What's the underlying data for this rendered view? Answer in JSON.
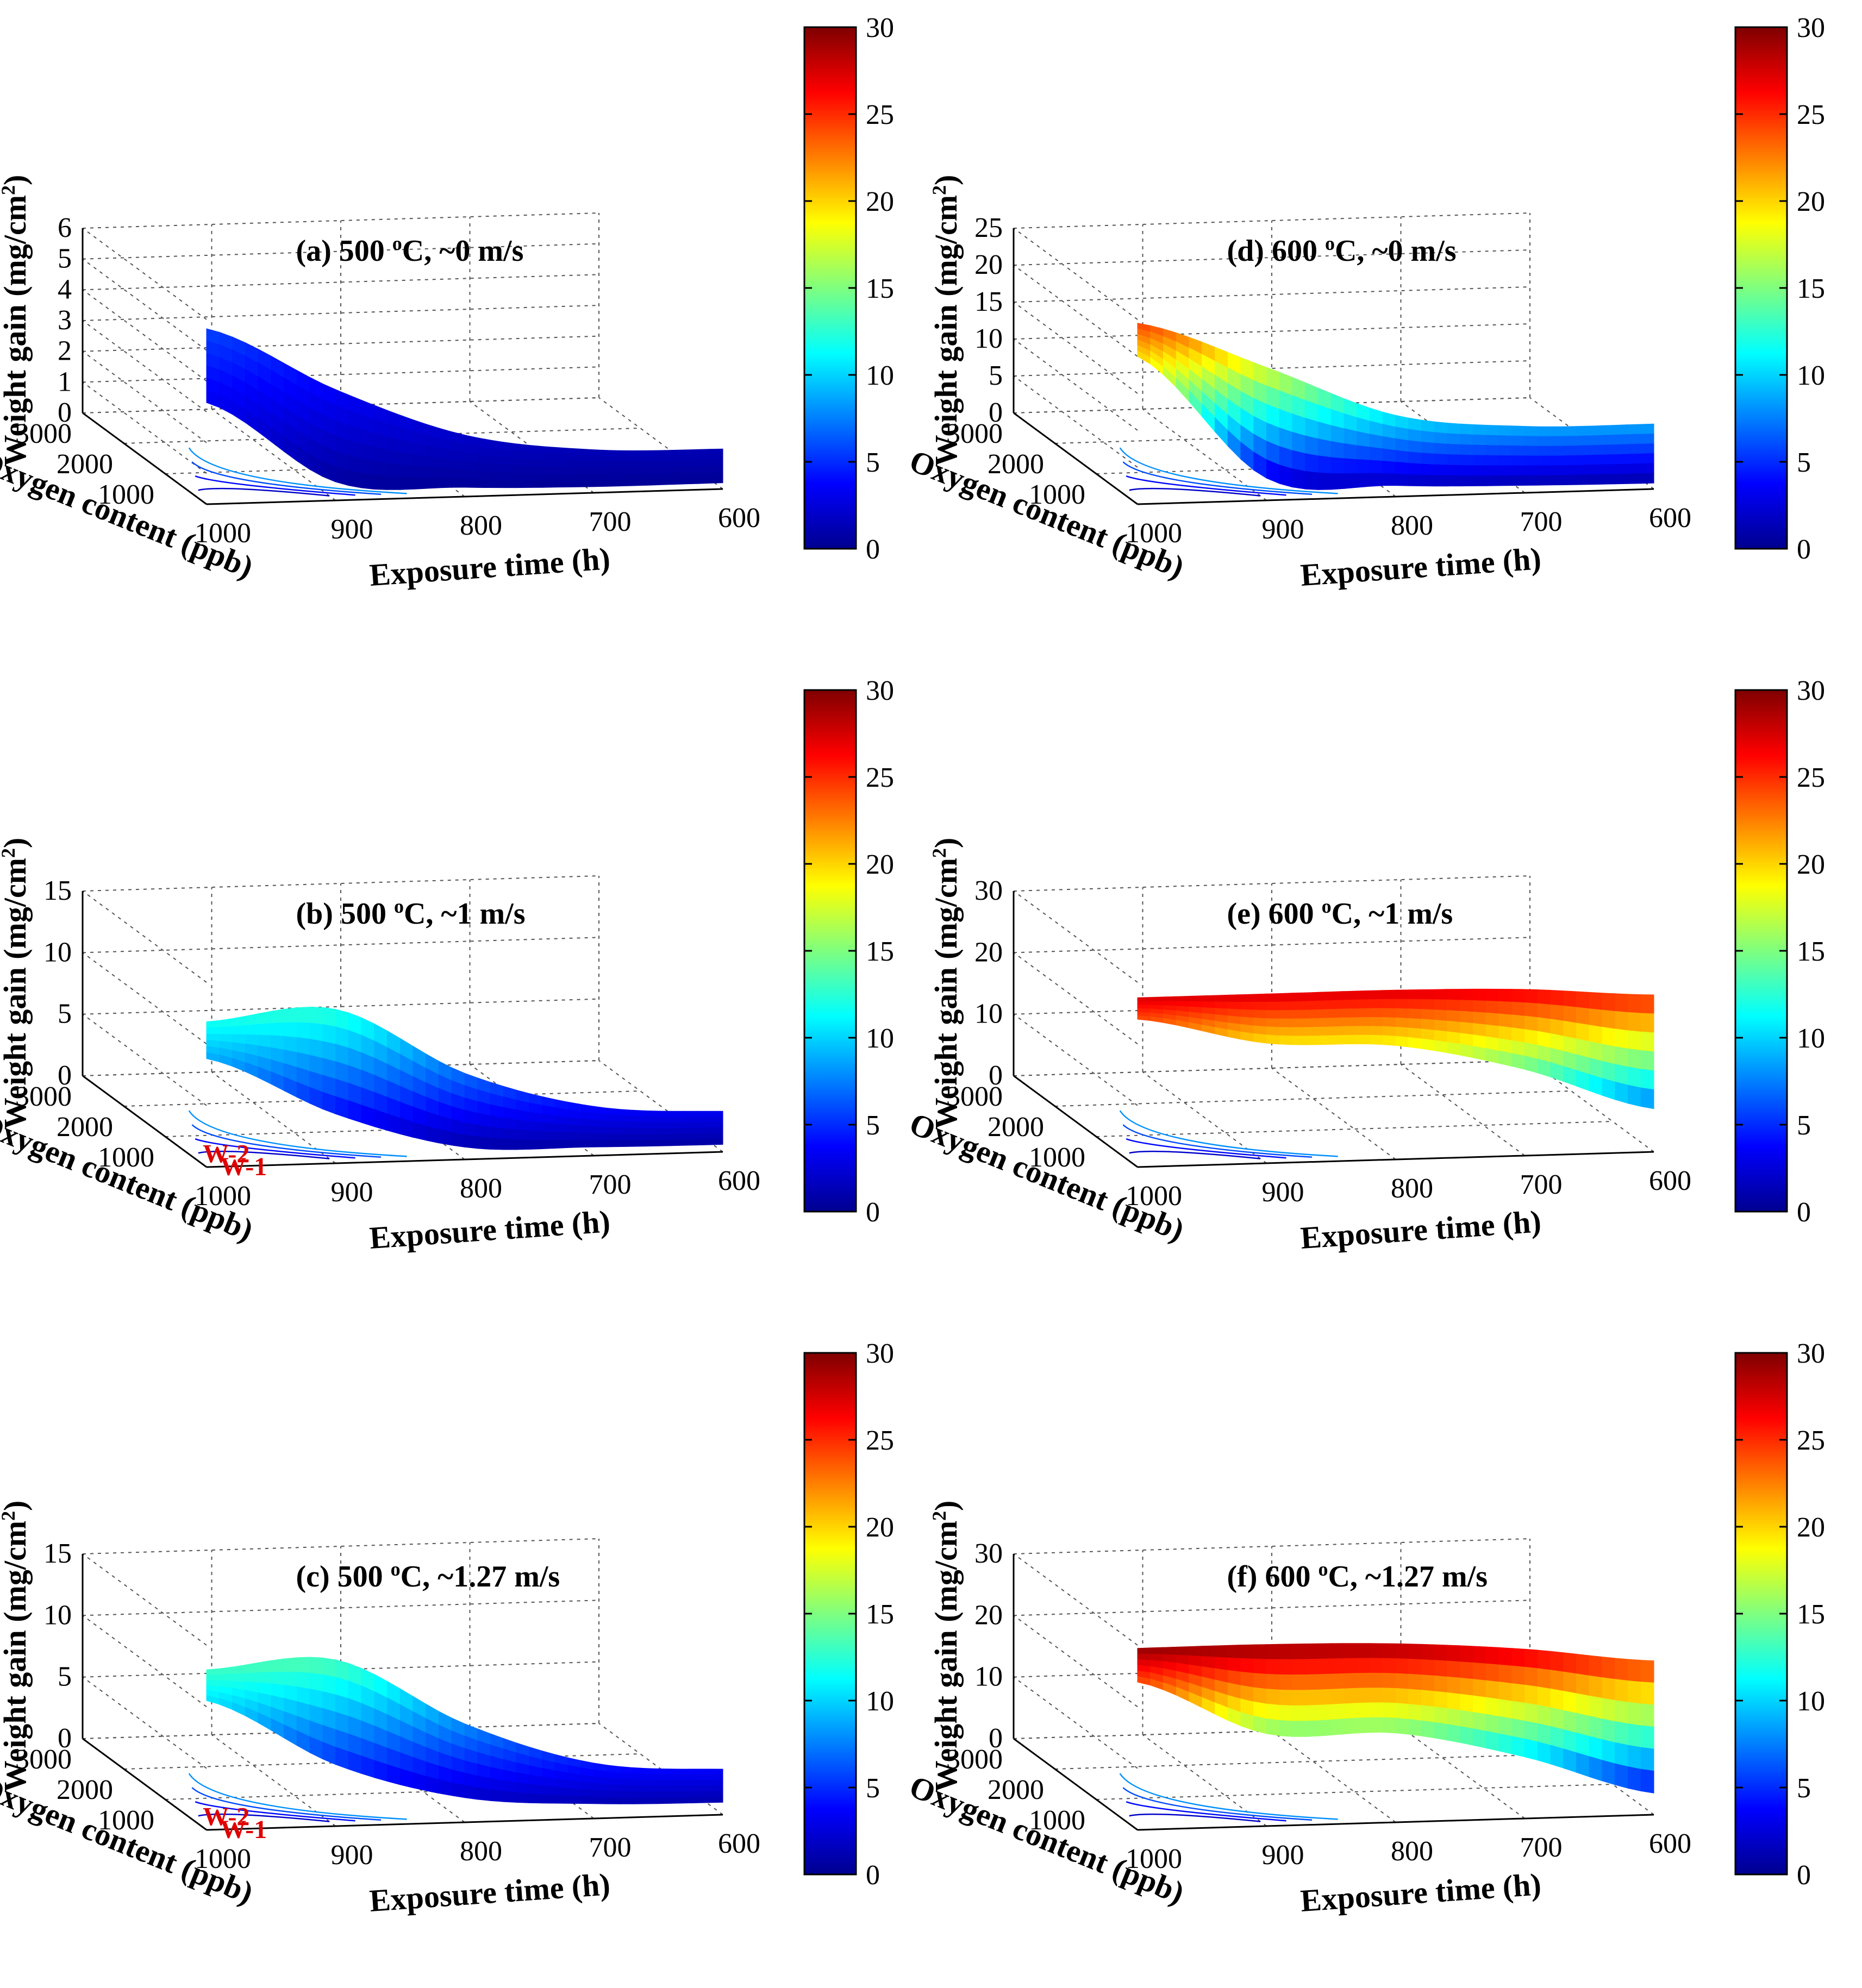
{
  "figure": {
    "description_labels": "Weight gain surfaces vs exposure time and oxygen content"
  },
  "colorbar": {
    "ticks": [
      "0",
      "5",
      "10",
      "15",
      "20",
      "25",
      "30"
    ],
    "stops": [
      "#00008f",
      "#0000ff",
      "#007fff",
      "#00ffff",
      "#7fff7f",
      "#ffff00",
      "#ff7f00",
      "#ff0000",
      "#7f0000"
    ]
  },
  "chart_data": [
    {
      "type": "surface",
      "panel": "a",
      "title_prefix": "(a) 500 ",
      "title_sup": "o",
      "title_suffix": "C,  ~0 m/s",
      "xlabel": "Exposure time (h)",
      "ylabel": "Oxygen content (ppb)",
      "zlabel_main": "Weight gain (mg/cm",
      "zlabel_sup": "2",
      "zlabel_end": ")",
      "x_ticks": [
        "1000",
        "900",
        "800",
        "700",
        "600"
      ],
      "y_ticks": [
        "3000",
        "2000",
        "1000"
      ],
      "z_ticks": [
        "0",
        "1",
        "2",
        "3",
        "4",
        "5",
        "6"
      ],
      "zlim": [
        0,
        6
      ],
      "clim": [
        0,
        30
      ],
      "exposure_time": [
        1000,
        900,
        800,
        700,
        600
      ],
      "back_edge_weight_gain": [
        5.7,
        3.6,
        2.0,
        1.4,
        1.3
      ],
      "front_edge_weight_gain": [
        3.3,
        0.6,
        0.3,
        0.2,
        0.2
      ],
      "annotations": []
    },
    {
      "type": "surface",
      "panel": "b",
      "title_prefix": "(b) 500 ",
      "title_sup": "o",
      "title_suffix": "C,  ~1 m/s",
      "xlabel": "Exposure time (h)",
      "ylabel": "Oxygen content (ppb)",
      "zlabel_main": "Weight gain (mg/cm",
      "zlabel_sup": "2",
      "zlabel_end": ")",
      "x_ticks": [
        "1000",
        "900",
        "800",
        "700",
        "600"
      ],
      "y_ticks": [
        "3000",
        "2000",
        "1000"
      ],
      "z_ticks": [
        "0",
        "5",
        "10",
        "15"
      ],
      "zlim": [
        0,
        15
      ],
      "clim": [
        0,
        30
      ],
      "exposure_time": [
        1000,
        900,
        800,
        700,
        600
      ],
      "back_edge_weight_gain": [
        11.8,
        12.5,
        7.0,
        4.0,
        3.3
      ],
      "front_edge_weight_gain": [
        8.8,
        4.0,
        1.0,
        0.7,
        0.6
      ],
      "annotations": [
        "W-2",
        "W-1"
      ]
    },
    {
      "type": "surface",
      "panel": "c",
      "title_prefix": "(c) 500 ",
      "title_sup": "o",
      "title_suffix": "C,  ~1.27 m/s",
      "xlabel": "Exposure time (h)",
      "ylabel": "Oxygen content (ppb)",
      "zlabel_main": "Weight gain (mg/cm",
      "zlabel_sup": "2",
      "zlabel_end": ")",
      "x_ticks": [
        "1000",
        "900",
        "800",
        "700",
        "600"
      ],
      "y_ticks": [
        "3000",
        "2000",
        "1000"
      ],
      "z_ticks": [
        "0",
        "5",
        "10",
        "15"
      ],
      "zlim": [
        0,
        15
      ],
      "clim": [
        0,
        30
      ],
      "exposure_time": [
        1000,
        900,
        800,
        700,
        600
      ],
      "back_edge_weight_gain": [
        13.0,
        13.5,
        8.0,
        4.5,
        3.7
      ],
      "front_edge_weight_gain": [
        10.5,
        5.0,
        2.0,
        1.2,
        1.0
      ],
      "annotations": [
        "W-2",
        "W-1"
      ]
    },
    {
      "type": "surface",
      "panel": "d",
      "title_prefix": "(d) 600 ",
      "title_sup": "o",
      "title_suffix": "C,  ~0 m/s",
      "xlabel": "Exposure time (h)",
      "ylabel": "Oxygen content (ppb)",
      "zlabel_main": "Weight gain (mg/cm",
      "zlabel_sup": "2",
      "zlabel_end": ")",
      "x_ticks": [
        "1000",
        "900",
        "800",
        "700",
        "600"
      ],
      "y_ticks": [
        "3000",
        "2000",
        "1000"
      ],
      "z_ticks": [
        "0",
        "5",
        "10",
        "15",
        "20",
        "25"
      ],
      "zlim": [
        0,
        25
      ],
      "clim": [
        0,
        30
      ],
      "exposure_time": [
        1000,
        900,
        800,
        700,
        600
      ],
      "back_edge_weight_gain": [
        24.5,
        18.0,
        11.0,
        9.0,
        8.8
      ],
      "front_edge_weight_gain": [
        20.0,
        3.0,
        1.5,
        1.0,
        0.8
      ],
      "annotations": []
    },
    {
      "type": "surface",
      "panel": "e",
      "title_prefix": "(e) 600 ",
      "title_sup": "o",
      "title_suffix": "C,  ~1 m/s",
      "xlabel": "Exposure time (h)",
      "ylabel": "Oxygen content (ppb)",
      "zlabel_main": "Weight gain (mg/cm",
      "zlabel_sup": "2",
      "zlabel_end": ")",
      "x_ticks": [
        "1000",
        "900",
        "800",
        "700",
        "600"
      ],
      "y_ticks": [
        "3000",
        "2000",
        "1000"
      ],
      "z_ticks": [
        "0",
        "10",
        "20",
        "30"
      ],
      "zlim": [
        0,
        30
      ],
      "clim": [
        0,
        30
      ],
      "exposure_time": [
        1000,
        900,
        800,
        700,
        600
      ],
      "back_edge_weight_gain": [
        27.5,
        27.5,
        27.5,
        27.0,
        25.5
      ],
      "front_edge_weight_gain": [
        24.0,
        19.5,
        18.5,
        14.0,
        7.0
      ],
      "annotations": []
    },
    {
      "type": "surface",
      "panel": "f",
      "title_prefix": "(f) 600 ",
      "title_sup": "o",
      "title_suffix": "C,  ~1.27 m/s",
      "xlabel": "Exposure time (h)",
      "ylabel": "Oxygen content (ppb)",
      "zlabel_main": "Weight gain (mg/cm",
      "zlabel_sup": "2",
      "zlabel_end": ")",
      "x_ticks": [
        "1000",
        "900",
        "800",
        "700",
        "600"
      ],
      "y_ticks": [
        "3000",
        "2000",
        "1000"
      ],
      "z_ticks": [
        "0",
        "10",
        "20",
        "30"
      ],
      "zlim": [
        0,
        30
      ],
      "clim": [
        0,
        30
      ],
      "exposure_time": [
        1000,
        900,
        800,
        700,
        600
      ],
      "back_edge_weight_gain": [
        29.5,
        29.5,
        29.0,
        27.5,
        25.0
      ],
      "front_edge_weight_gain": [
        24.0,
        15.0,
        14.5,
        10.0,
        3.5
      ],
      "annotations": []
    }
  ]
}
